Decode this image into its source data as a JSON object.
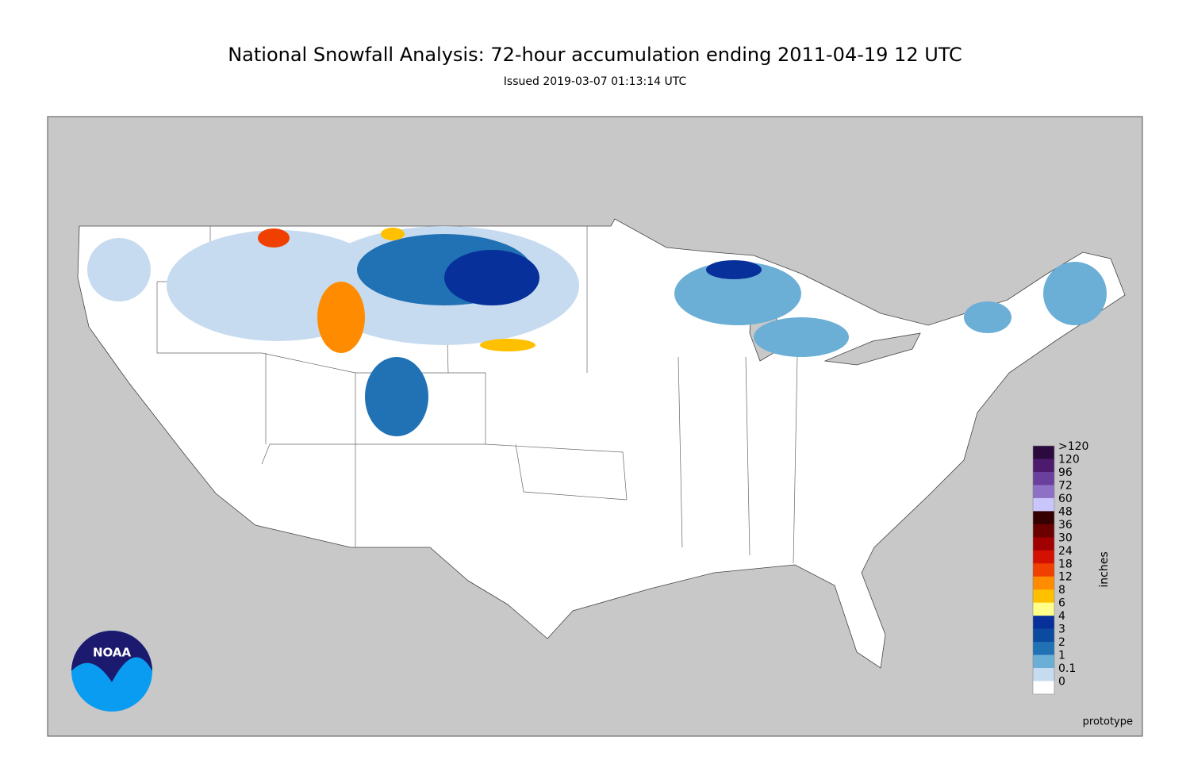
{
  "title": "National Snowfall Analysis: 72-hour accumulation ending 2011-04-19 12 UTC",
  "subtitle": "Issued 2019-03-07 01:13:14 UTC",
  "legend": {
    "unit": "inches",
    "bins": [
      {
        "label": ">120",
        "color": "#2b0a3d"
      },
      {
        "label": "120",
        "color": "#4c1b6e"
      },
      {
        "label": "96",
        "color": "#6b3f9e"
      },
      {
        "label": "72",
        "color": "#8e70c4"
      },
      {
        "label": "60",
        "color": "#c9c6fb"
      },
      {
        "label": "48",
        "color": "#350000"
      },
      {
        "label": "36",
        "color": "#6b0000"
      },
      {
        "label": "30",
        "color": "#a00000"
      },
      {
        "label": "24",
        "color": "#d41000"
      },
      {
        "label": "18",
        "color": "#f04000"
      },
      {
        "label": "12",
        "color": "#ff8c00"
      },
      {
        "label": "8",
        "color": "#ffc000"
      },
      {
        "label": "6",
        "color": "#ffff8a"
      },
      {
        "label": "4",
        "color": "#08309a"
      },
      {
        "label": "3",
        "color": "#0c4aa0"
      },
      {
        "label": "2",
        "color": "#2171b5"
      },
      {
        "label": "1",
        "color": "#6baed6"
      },
      {
        "label": "0.1",
        "color": "#c6dbef"
      },
      {
        "label": "0",
        "color": "#ffffff"
      }
    ]
  },
  "footnote": "prototype",
  "logo": "NOAA"
}
